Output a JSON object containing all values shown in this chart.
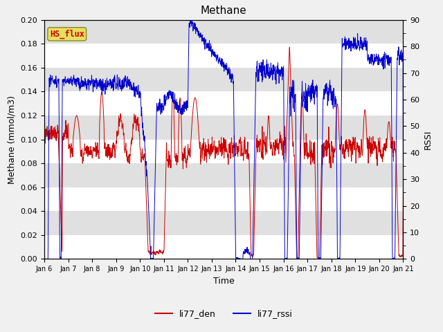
{
  "title": "Methane",
  "ylabel_left": "Methane (mmol/m3)",
  "ylabel_right": "RSSI",
  "xlabel": "Time",
  "ylim_left": [
    0.0,
    0.2
  ],
  "ylim_right": [
    0,
    90
  ],
  "yticks_left": [
    0.0,
    0.02,
    0.04,
    0.06,
    0.08,
    0.1,
    0.12,
    0.14,
    0.16,
    0.18,
    0.2
  ],
  "yticks_right": [
    0,
    10,
    20,
    30,
    40,
    50,
    60,
    70,
    80,
    90
  ],
  "xtick_labels": [
    "Jan 6",
    "Jan 7",
    "Jan 8",
    "Jan 9",
    "Jan 10",
    "Jan 11",
    "Jan 12",
    "Jan 13",
    "Jan 14",
    "Jan 15",
    "Jan 16",
    "Jan 17",
    "Jan 18",
    "Jan 19",
    "Jan 20",
    "Jan 21"
  ],
  "color_den": "#cc0000",
  "color_rssi": "#0000cc",
  "legend_labels": [
    "li77_den",
    "li77_rssi"
  ],
  "hs_flux_label": "HS_flux",
  "bg_color": "#e0e0e0",
  "bg_band_light": "#ebebeb",
  "bg_band_dark": "#d8d8d8",
  "grid_color": "#ffffff",
  "label_box_facecolor": "#e8e060",
  "label_box_edgecolor": "#888820",
  "title_fontsize": 11,
  "axis_fontsize": 9,
  "tick_fontsize": 8,
  "legend_fontsize": 9
}
